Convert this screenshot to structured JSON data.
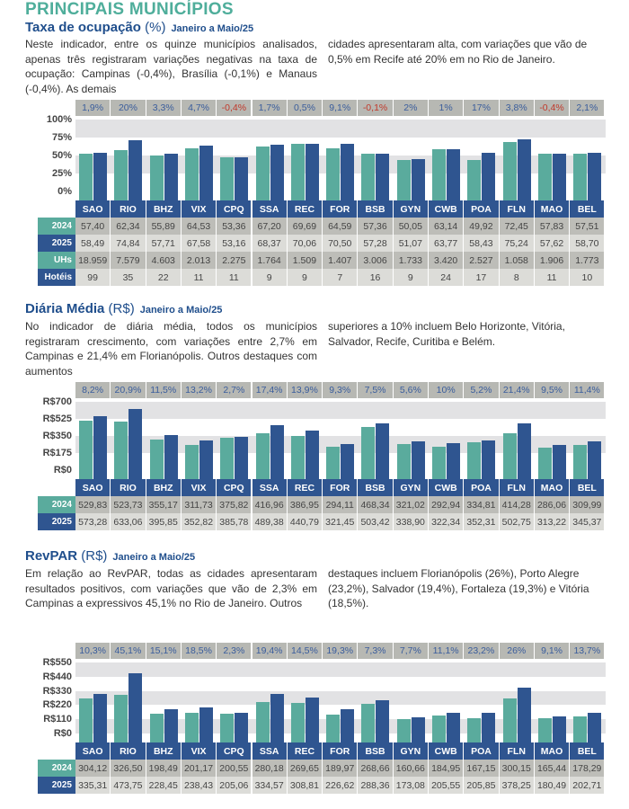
{
  "title": "PRINCIPAIS MUNICÍPIOS",
  "cities": [
    "SAO",
    "RIO",
    "BHZ",
    "VIX",
    "CPQ",
    "SSA",
    "REC",
    "FOR",
    "BSB",
    "GYN",
    "CWB",
    "POA",
    "FLN",
    "MAO",
    "BEL"
  ],
  "colors": {
    "series_2024": "#5aab9d",
    "series_2025": "#2f5590",
    "negative": "#c0392b"
  },
  "sections": [
    {
      "title": "Taxa de ocupação",
      "unit": "(%)",
      "period": "Janeiro a Maio/25",
      "text_left": "Neste indicador, entre os quinze municípios analisados, apenas três registraram variações negativas na taxa de ocupação: Campinas (-0,4%), Brasília (-0,1%) e Manaus (-0,4%). As demais",
      "text_right": "cidades apresentaram alta, com variações que vão de 0,5% em Recife até 20% em no Rio de Janeiro."
    },
    {
      "title": "Diária Média",
      "unit": "(R$)",
      "period": "Janeiro a Maio/25",
      "text_left": "No indicador de diária média, todos os municípios registraram crescimento, com variações entre 2,7% em Campinas e 21,4% em Florianópolis. Outros destaques com aumentos",
      "text_right": "superiores a 10% incluem Belo Horizonte, Vitória, Salvador, Recife, Curitiba e Belém."
    },
    {
      "title": "RevPAR",
      "unit": "(R$)",
      "period": "Janeiro a Maio/25",
      "text_left": "Em relação ao RevPAR, todas as cidades apresentaram resultados positivos, com variações que vão de 2,3% em Campinas a expressivos 45,1% no Rio de Janeiro. Outros",
      "text_right": "destaques incluem Florianópolis (26%), Porto Alegre (23,2%), Salvador (19,4%), Fortaleza (19,3%) e Vitória (18,5%)."
    }
  ],
  "chart_data": [
    {
      "type": "bar",
      "ylim": [
        0,
        100
      ],
      "yticks": [
        "100%",
        "75%",
        "50%",
        "25%",
        "0%"
      ],
      "categories": [
        "SAO",
        "RIO",
        "BHZ",
        "VIX",
        "CPQ",
        "SSA",
        "REC",
        "FOR",
        "BSB",
        "GYN",
        "CWB",
        "POA",
        "FLN",
        "MAO",
        "BEL"
      ],
      "variation": [
        "1,9%",
        "20%",
        "3,3%",
        "4,7%",
        "-0,4%",
        "1,7%",
        "0,5%",
        "9,1%",
        "-0,1%",
        "2%",
        "1%",
        "17%",
        "3,8%",
        "-0,4%",
        "2,1%"
      ],
      "series": [
        {
          "name": "2024",
          "values": [
            57.4,
            62.34,
            55.89,
            64.53,
            53.36,
            67.2,
            69.69,
            64.59,
            57.36,
            50.05,
            63.14,
            49.92,
            72.45,
            57.83,
            57.51
          ],
          "labels": [
            "57,40",
            "62,34",
            "55,89",
            "64,53",
            "53,36",
            "67,20",
            "69,69",
            "64,59",
            "57,36",
            "50,05",
            "63,14",
            "49,92",
            "72,45",
            "57,83",
            "57,51"
          ]
        },
        {
          "name": "2025",
          "values": [
            58.49,
            74.84,
            57.71,
            67.58,
            53.16,
            68.37,
            70.06,
            70.5,
            57.28,
            51.07,
            63.77,
            58.43,
            75.24,
            57.62,
            58.7
          ],
          "labels": [
            "58,49",
            "74,84",
            "57,71",
            "67,58",
            "53,16",
            "68,37",
            "70,06",
            "70,50",
            "57,28",
            "51,07",
            "63,77",
            "58,43",
            "75,24",
            "57,62",
            "58,70"
          ]
        }
      ],
      "extra_rows": [
        {
          "name": "UHs",
          "labels": [
            "18.959",
            "7.579",
            "4.603",
            "2.013",
            "2.275",
            "1.764",
            "1.509",
            "1.407",
            "3.006",
            "1.733",
            "3.420",
            "2.527",
            "1.058",
            "1.906",
            "1.773"
          ]
        },
        {
          "name": "Hotéis",
          "labels": [
            "99",
            "35",
            "22",
            "11",
            "11",
            "9",
            "9",
            "7",
            "16",
            "9",
            "24",
            "17",
            "8",
            "11",
            "10"
          ]
        }
      ]
    },
    {
      "type": "bar",
      "ylim": [
        0,
        700
      ],
      "yticks": [
        "R$700",
        "R$525",
        "R$350",
        "R$175",
        "R$0"
      ],
      "categories": [
        "SAO",
        "RIO",
        "BHZ",
        "VIX",
        "CPQ",
        "SSA",
        "REC",
        "FOR",
        "BSB",
        "GYN",
        "CWB",
        "POA",
        "FLN",
        "MAO",
        "BEL"
      ],
      "variation": [
        "8,2%",
        "20,9%",
        "11,5%",
        "13,2%",
        "2,7%",
        "17,4%",
        "13,9%",
        "9,3%",
        "7,5%",
        "5,6%",
        "10%",
        "5,2%",
        "21,4%",
        "9,5%",
        "11,4%"
      ],
      "series": [
        {
          "name": "2024",
          "values": [
            529.83,
            523.73,
            355.17,
            311.73,
            375.82,
            416.96,
            386.95,
            294.11,
            468.34,
            321.02,
            292.94,
            334.81,
            414.28,
            286.06,
            309.99
          ],
          "labels": [
            "529,83",
            "523,73",
            "355,17",
            "311,73",
            "375,82",
            "416,96",
            "386,95",
            "294,11",
            "468,34",
            "321,02",
            "292,94",
            "334,81",
            "414,28",
            "286,06",
            "309,99"
          ]
        },
        {
          "name": "2025",
          "values": [
            573.28,
            633.06,
            395.85,
            352.82,
            385.78,
            489.38,
            440.79,
            321.45,
            503.42,
            338.9,
            322.34,
            352.31,
            502.75,
            313.22,
            345.37
          ],
          "labels": [
            "573,28",
            "633,06",
            "395,85",
            "352,82",
            "385,78",
            "489,38",
            "440,79",
            "321,45",
            "503,42",
            "338,90",
            "322,34",
            "352,31",
            "502,75",
            "313,22",
            "345,37"
          ]
        }
      ],
      "extra_rows": []
    },
    {
      "type": "bar",
      "ylim": [
        0,
        550
      ],
      "yticks": [
        "R$550",
        "R$440",
        "R$330",
        "R$220",
        "R$110",
        "R$0"
      ],
      "categories": [
        "SAO",
        "RIO",
        "BHZ",
        "VIX",
        "CPQ",
        "SSA",
        "REC",
        "FOR",
        "BSB",
        "GYN",
        "CWB",
        "POA",
        "FLN",
        "MAO",
        "BEL"
      ],
      "variation": [
        "10,3%",
        "45,1%",
        "15,1%",
        "18,5%",
        "2,3%",
        "19,4%",
        "14,5%",
        "19,3%",
        "7,3%",
        "7,7%",
        "11,1%",
        "23,2%",
        "26%",
        "9,1%",
        "13,7%"
      ],
      "series": [
        {
          "name": "2024",
          "values": [
            304.12,
            326.5,
            198.49,
            201.17,
            200.55,
            280.18,
            269.65,
            189.97,
            268.66,
            160.66,
            184.95,
            167.15,
            300.15,
            165.44,
            178.29
          ],
          "labels": [
            "304,12",
            "326,50",
            "198,49",
            "201,17",
            "200,55",
            "280,18",
            "269,65",
            "189,97",
            "268,66",
            "160,66",
            "184,95",
            "167,15",
            "300,15",
            "165,44",
            "178,29"
          ]
        },
        {
          "name": "2025",
          "values": [
            335.31,
            473.75,
            228.45,
            238.43,
            205.06,
            334.57,
            308.81,
            226.62,
            288.36,
            173.08,
            205.55,
            205.85,
            378.25,
            180.49,
            202.71
          ],
          "labels": [
            "335,31",
            "473,75",
            "228,45",
            "238,43",
            "205,06",
            "334,57",
            "308,81",
            "226,62",
            "288,36",
            "173,08",
            "205,55",
            "205,85",
            "378,25",
            "180,49",
            "202,71"
          ]
        }
      ],
      "extra_rows": []
    }
  ]
}
